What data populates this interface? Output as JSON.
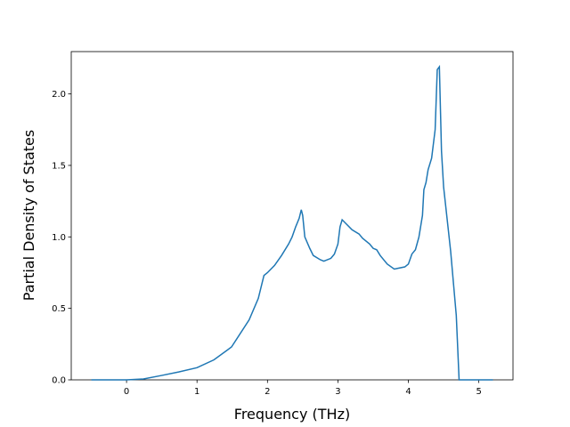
{
  "chart_data": {
    "type": "line",
    "xlabel": "Frequency (THz)",
    "ylabel": "Partial Density of States",
    "x": [
      -0.5,
      0,
      0.24,
      0.49,
      0.74,
      1.0,
      1.24,
      1.49,
      1.74,
      1.87,
      1.95,
      2.0,
      2.1,
      2.2,
      2.3,
      2.35,
      2.4,
      2.45,
      2.48,
      2.5,
      2.53,
      2.6,
      2.65,
      2.75,
      2.8,
      2.9,
      2.95,
      3.0,
      3.03,
      3.06,
      3.1,
      3.2,
      3.3,
      3.35,
      3.45,
      3.5,
      3.55,
      3.6,
      3.7,
      3.8,
      3.85,
      3.95,
      4.0,
      4.05,
      4.1,
      4.15,
      4.2,
      4.22,
      4.25,
      4.28,
      4.33,
      4.38,
      4.41,
      4.44,
      4.47,
      4.5,
      4.6,
      4.68,
      4.72,
      5.2
    ],
    "series": [
      {
        "color": "#1f77b4",
        "values": [
          0,
          0,
          0.006,
          0.03,
          0.055,
          0.085,
          0.14,
          0.23,
          0.42,
          0.57,
          0.73,
          0.75,
          0.8,
          0.87,
          0.95,
          1.0,
          1.07,
          1.13,
          1.19,
          1.15,
          1.0,
          0.92,
          0.87,
          0.84,
          0.83,
          0.85,
          0.88,
          0.95,
          1.07,
          1.12,
          1.1,
          1.05,
          1.02,
          0.99,
          0.95,
          0.92,
          0.91,
          0.87,
          0.81,
          0.775,
          0.78,
          0.79,
          0.81,
          0.88,
          0.91,
          1.0,
          1.15,
          1.33,
          1.38,
          1.47,
          1.55,
          1.75,
          2.17,
          2.19,
          1.6,
          1.35,
          0.9,
          0.45,
          0,
          0
        ]
      }
    ],
    "xlim": [
      -0.785,
      5.485
    ],
    "xticks": [
      0,
      1,
      2,
      3,
      4,
      5
    ],
    "ylim": [
      0,
      2.296
    ],
    "yticks": [
      {
        "value": 0,
        "label": "0.0"
      },
      {
        "value": 0.5,
        "label": "0.5"
      },
      {
        "value": 1,
        "label": "1.0"
      },
      {
        "value": 1.5,
        "label": "1.5"
      },
      {
        "value": 2,
        "label": "2.0"
      }
    ]
  }
}
